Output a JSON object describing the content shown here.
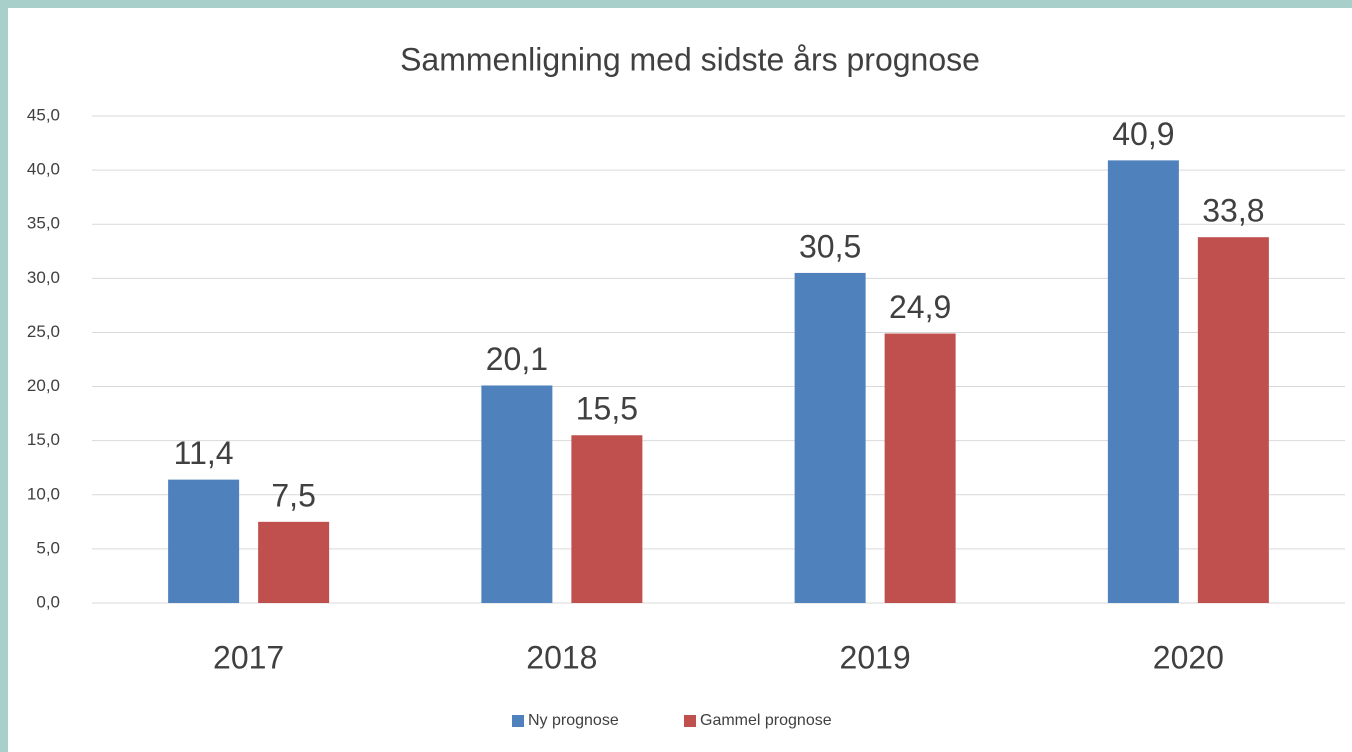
{
  "chart_data": {
    "type": "bar",
    "title": "Sammenligning med sidste års prognose",
    "categories": [
      "2017",
      "2018",
      "2019",
      "2020"
    ],
    "series": [
      {
        "name": "Ny prognose",
        "color": "#4f81bd",
        "values": [
          11.4,
          20.1,
          30.5,
          40.9
        ],
        "value_labels": [
          "11,4",
          "20,1",
          "30,5",
          "40,9"
        ]
      },
      {
        "name": "Gammel prognose",
        "color": "#c0504d",
        "values": [
          7.5,
          15.5,
          24.9,
          33.8
        ],
        "value_labels": [
          "7,5",
          "15,5",
          "24,9",
          "33,8"
        ]
      }
    ],
    "ylim": [
      0,
      45
    ],
    "yticks": [
      {
        "value": 0,
        "label": "0,0"
      },
      {
        "value": 5,
        "label": "5,0"
      },
      {
        "value": 10,
        "label": "10,0"
      },
      {
        "value": 15,
        "label": "15,0"
      },
      {
        "value": 20,
        "label": "20,0"
      },
      {
        "value": 25,
        "label": "25,0"
      },
      {
        "value": 30,
        "label": "30,0"
      },
      {
        "value": 35,
        "label": "35,0"
      },
      {
        "value": 40,
        "label": "40,0"
      },
      {
        "value": 45,
        "label": "45,0"
      }
    ],
    "grid": true,
    "legend": "bottom"
  }
}
